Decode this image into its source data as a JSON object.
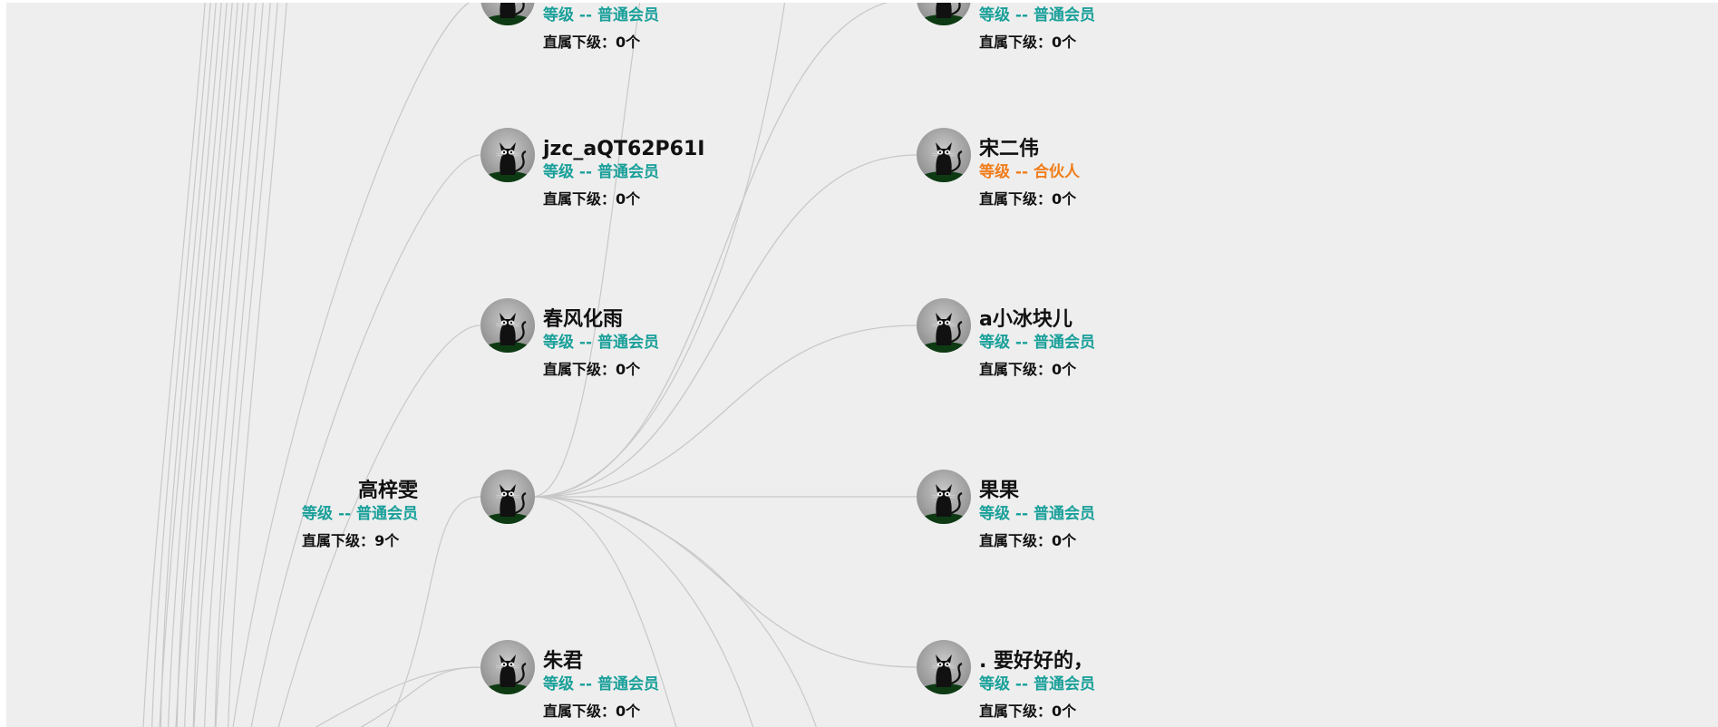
{
  "label_prefixes": {
    "level": "等级 -- ",
    "children": "直属下级：",
    "children_unit": "个"
  },
  "colors": {
    "background": "#eeeeee",
    "link": "#c8c8c8",
    "level_member": "#1aa09a",
    "level_partner": "#f07d1b"
  },
  "center": {
    "name": "高梓雯",
    "level": "普通会员",
    "children": 9
  },
  "nodes_column_1": [
    {
      "name": "",
      "level": "普通会员",
      "children": 0
    },
    {
      "name": "jzc_aQT62P61I",
      "level": "普通会员",
      "children": 0
    },
    {
      "name": "春风化雨",
      "level": "普通会员",
      "children": 0
    },
    {
      "name": "朱君",
      "level": "普通会员",
      "children": 0
    }
  ],
  "nodes_column_2": [
    {
      "name": "",
      "level": "普通会员",
      "children": 0
    },
    {
      "name": "宋二伟",
      "level": "合伙人",
      "children": 0
    },
    {
      "name": "a小冰块儿",
      "level": "普通会员",
      "children": 0
    },
    {
      "name": "果果",
      "level": "普通会员",
      "children": 0
    },
    {
      "name": ". 要好好的，",
      "level": "普通会员",
      "children": 0
    }
  ],
  "avatar_icon": "black-cat-avatar-icon"
}
